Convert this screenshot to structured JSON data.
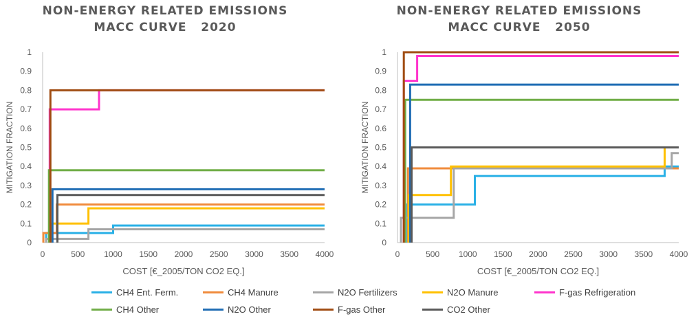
{
  "titles": {
    "left": "NON-ENERGY RELATED EMISSIONS\nMACC CURVE   2020",
    "right": "NON-ENERGY RELATED EMISSIONS\nMACC CURVE   2050"
  },
  "chart_data": [
    {
      "type": "line",
      "title": "NON-ENERGY RELATED EMISSIONS MACC CURVE 2020",
      "xlabel": "COST [€_2005/TON CO2 EQ.]",
      "ylabel": "MITIGATION FRACTION",
      "xlim": [
        0,
        4000
      ],
      "ylim": [
        0,
        1
      ],
      "x_ticks": [
        "0",
        "500",
        "1000",
        "1500",
        "2000",
        "2500",
        "3000",
        "3500",
        "4000"
      ],
      "y_ticks": [
        "0",
        "0.1",
        "0.2",
        "0.3",
        "0.4",
        "0.5",
        "0.6",
        "0.7",
        "0.8",
        "0.9",
        "1"
      ],
      "grid": false,
      "series": [
        {
          "name": "CH4 Ent. Ferm.",
          "color": "#29b0e6",
          "x": [
            50,
            50,
            1000,
            1000,
            4000
          ],
          "y": [
            0,
            0.05,
            0.05,
            0.09,
            0.09
          ]
        },
        {
          "name": "CH4 Manure",
          "color": "#f08b3c",
          "x": [
            10,
            10,
            200,
            200,
            4000
          ],
          "y": [
            0,
            0.05,
            0.05,
            0.2,
            0.2
          ]
        },
        {
          "name": "N2O Fertilizers",
          "color": "#a6a6a6",
          "x": [
            50,
            50,
            650,
            650,
            4000
          ],
          "y": [
            0,
            0.02,
            0.02,
            0.07,
            0.07
          ]
        },
        {
          "name": "N2O Manure",
          "color": "#ffc000",
          "x": [
            120,
            120,
            650,
            650,
            4000
          ],
          "y": [
            0,
            0.1,
            0.1,
            0.18,
            0.18
          ]
        },
        {
          "name": "F-gas Refrigeration",
          "color": "#ff33cc",
          "x": [
            100,
            100,
            800,
            800,
            4000
          ],
          "y": [
            0,
            0.7,
            0.7,
            0.8,
            0.8
          ]
        },
        {
          "name": "CH4 Other",
          "color": "#70ad47",
          "x": [
            90,
            90,
            4000
          ],
          "y": [
            0,
            0.38,
            0.38
          ]
        },
        {
          "name": "N2O Other",
          "color": "#1f6cb4",
          "x": [
            140,
            140,
            4000
          ],
          "y": [
            0,
            0.28,
            0.28
          ]
        },
        {
          "name": "F-gas Other",
          "color": "#a04c12",
          "x": [
            110,
            110,
            4000
          ],
          "y": [
            0,
            0.8,
            0.8
          ]
        },
        {
          "name": "CO2 Other",
          "color": "#595959",
          "x": [
            210,
            210,
            4000
          ],
          "y": [
            0,
            0.25,
            0.25
          ]
        }
      ]
    },
    {
      "type": "line",
      "title": "NON-ENERGY RELATED EMISSIONS MACC CURVE 2050",
      "xlabel": "COST [€_2005/TON CO2 EQ.]",
      "ylabel": "MITIGATION FRACTION",
      "xlim": [
        0,
        4000
      ],
      "ylim": [
        0,
        1
      ],
      "x_ticks": [
        "0",
        "500",
        "1000",
        "1500",
        "2000",
        "2500",
        "3000",
        "3500",
        "4000"
      ],
      "y_ticks": [
        "0",
        "0.1",
        "0.2",
        "0.3",
        "0.4",
        "0.5",
        "0.6",
        "0.7",
        "0.8",
        "0.9",
        "1"
      ],
      "grid": false,
      "series": [
        {
          "name": "CH4 Ent. Ferm.",
          "color": "#29b0e6",
          "x": [
            140,
            140,
            1100,
            1100,
            3800,
            3800,
            4000
          ],
          "y": [
            0,
            0.2,
            0.2,
            0.35,
            0.35,
            0.4,
            0.4
          ]
        },
        {
          "name": "CH4 Manure",
          "color": "#f08b3c",
          "x": [
            150,
            150,
            4000
          ],
          "y": [
            0,
            0.39,
            0.39
          ]
        },
        {
          "name": "N2O Fertilizers",
          "color": "#a6a6a6",
          "x": [
            50,
            50,
            800,
            800,
            3900,
            3900,
            4000
          ],
          "y": [
            0,
            0.13,
            0.13,
            0.39,
            0.39,
            0.47,
            0.47
          ]
        },
        {
          "name": "N2O Manure",
          "color": "#ffc000",
          "x": [
            160,
            160,
            760,
            760,
            3800,
            3800,
            4000
          ],
          "y": [
            0,
            0.25,
            0.25,
            0.4,
            0.4,
            0.5,
            0.5
          ]
        },
        {
          "name": "F-gas Refrigeration",
          "color": "#ff33cc",
          "x": [
            90,
            90,
            280,
            280,
            4000
          ],
          "y": [
            0,
            0.85,
            0.85,
            0.98,
            0.98
          ]
        },
        {
          "name": "CH4 Other",
          "color": "#70ad47",
          "x": [
            110,
            110,
            4000
          ],
          "y": [
            0,
            0.75,
            0.75
          ]
        },
        {
          "name": "N2O Other",
          "color": "#1f6cb4",
          "x": [
            180,
            180,
            4000
          ],
          "y": [
            0,
            0.83,
            0.83
          ]
        },
        {
          "name": "F-gas Other",
          "color": "#a04c12",
          "x": [
            90,
            90,
            4000
          ],
          "y": [
            0,
            1,
            1
          ]
        },
        {
          "name": "CO2 Other",
          "color": "#595959",
          "x": [
            200,
            200,
            4000
          ],
          "y": [
            0,
            0.5,
            0.5
          ]
        }
      ]
    }
  ],
  "legend": [
    {
      "label": "CH4 Ent. Ferm.",
      "color": "#29b0e6"
    },
    {
      "label": "CH4 Manure",
      "color": "#f08b3c"
    },
    {
      "label": "N2O Fertilizers",
      "color": "#a6a6a6"
    },
    {
      "label": "N2O Manure",
      "color": "#ffc000"
    },
    {
      "label": "F-gas Refrigeration",
      "color": "#ff33cc"
    },
    {
      "label": "CH4 Other",
      "color": "#70ad47"
    },
    {
      "label": "N2O Other",
      "color": "#1f6cb4"
    },
    {
      "label": "F-gas Other",
      "color": "#a04c12"
    },
    {
      "label": "CO2 Other",
      "color": "#595959"
    }
  ]
}
